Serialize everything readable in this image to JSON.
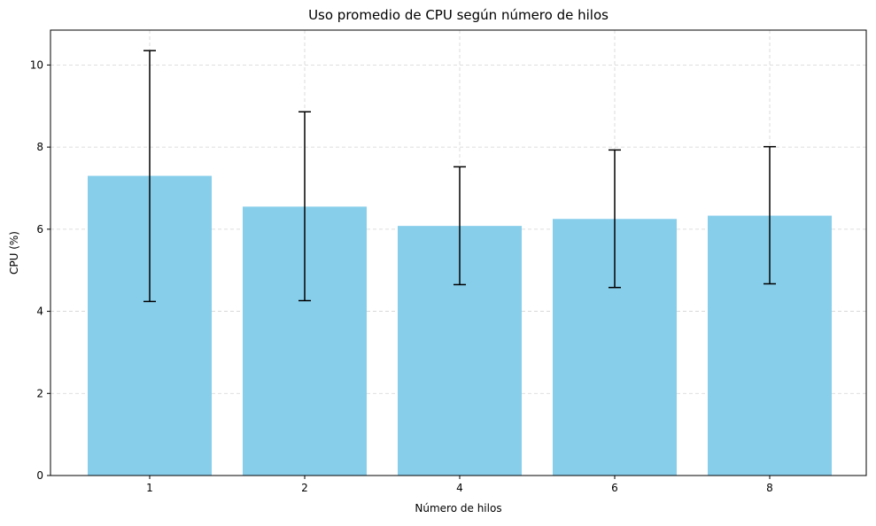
{
  "chart_data": {
    "type": "bar",
    "title": "Uso promedio de CPU según número de hilos",
    "xlabel": "Número de hilos",
    "ylabel": "CPU (%)",
    "categories": [
      "1",
      "2",
      "4",
      "6",
      "8"
    ],
    "values": [
      7.3,
      6.55,
      6.08,
      6.25,
      6.33
    ],
    "error_lower": [
      4.24,
      4.26,
      4.65,
      4.58,
      4.67
    ],
    "error_upper": [
      10.35,
      8.86,
      7.52,
      7.93,
      8.01
    ],
    "ylim": [
      0,
      10.85
    ],
    "yticks": [
      0,
      2,
      4,
      6,
      8,
      10
    ],
    "grid": true,
    "colors": {
      "bar": "#87ceeb",
      "error_bar": "#000000",
      "grid": "#d3d3d3",
      "axis": "#000000"
    }
  }
}
